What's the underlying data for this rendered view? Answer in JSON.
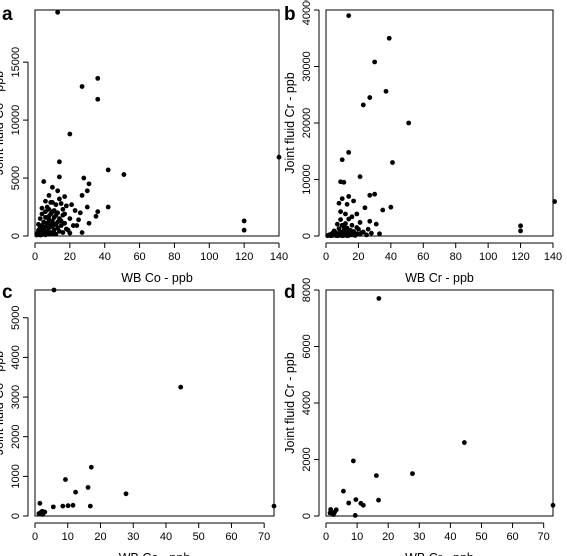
{
  "chart_data": [
    {
      "panel": "a",
      "type": "scatter",
      "xlabel": "WB Co - ppb",
      "ylabel": "Joint fluid Co - ppb",
      "xlim": [
        0,
        140
      ],
      "ylim": [
        0,
        19500
      ],
      "xticks": [
        0,
        20,
        40,
        60,
        80,
        100,
        120,
        140
      ],
      "yticks": [
        0,
        5000,
        10000,
        15000
      ],
      "points": [
        [
          13,
          19300
        ],
        [
          36,
          13600
        ],
        [
          27,
          12900
        ],
        [
          36,
          11800
        ],
        [
          20,
          8800
        ],
        [
          140,
          6800
        ],
        [
          14,
          6400
        ],
        [
          42,
          5700
        ],
        [
          51,
          5300
        ],
        [
          14,
          5100
        ],
        [
          28,
          5000
        ],
        [
          31,
          4500
        ],
        [
          5,
          4700
        ],
        [
          10,
          4200
        ],
        [
          30,
          3900
        ],
        [
          13,
          3900
        ],
        [
          27,
          3500
        ],
        [
          17,
          3400
        ],
        [
          8,
          3500
        ],
        [
          14,
          3200
        ],
        [
          6,
          3000
        ],
        [
          10,
          2900
        ],
        [
          9,
          2900
        ],
        [
          15,
          2800
        ],
        [
          21,
          2700
        ],
        [
          12,
          2700
        ],
        [
          18,
          2600
        ],
        [
          30,
          2500
        ],
        [
          42,
          2500
        ],
        [
          7,
          2500
        ],
        [
          4,
          2400
        ],
        [
          8,
          2300
        ],
        [
          16,
          2300
        ],
        [
          11,
          2200
        ],
        [
          23,
          2200
        ],
        [
          36,
          2100
        ],
        [
          6,
          2100
        ],
        [
          10,
          2100
        ],
        [
          26,
          2000
        ],
        [
          13,
          2000
        ],
        [
          4,
          1900
        ],
        [
          9,
          1900
        ],
        [
          17,
          1900
        ],
        [
          12,
          1800
        ],
        [
          16,
          1800
        ],
        [
          8,
          1700
        ],
        [
          35,
          1700
        ],
        [
          6,
          1600
        ],
        [
          11,
          1600
        ],
        [
          14,
          1500
        ],
        [
          20,
          1500
        ],
        [
          3,
          1500
        ],
        [
          8,
          1400
        ],
        [
          25,
          1400
        ],
        [
          10,
          1300
        ],
        [
          120,
          1300
        ],
        [
          5,
          1200
        ],
        [
          13,
          1200
        ],
        [
          17,
          1100
        ],
        [
          7,
          1100
        ],
        [
          31,
          1100
        ],
        [
          2,
          1000
        ],
        [
          9,
          1000
        ],
        [
          12,
          1000
        ],
        [
          4,
          900
        ],
        [
          15,
          900
        ],
        [
          22,
          900
        ],
        [
          6,
          800
        ],
        [
          10,
          800
        ],
        [
          3,
          700
        ],
        [
          8,
          700
        ],
        [
          13,
          700
        ],
        [
          18,
          600
        ],
        [
          5,
          600
        ],
        [
          11,
          500
        ],
        [
          120,
          500
        ],
        [
          2,
          500
        ],
        [
          7,
          400
        ],
        [
          14,
          400
        ],
        [
          4,
          400
        ],
        [
          9,
          300
        ],
        [
          3,
          300
        ],
        [
          6,
          300
        ],
        [
          16,
          300
        ],
        [
          1,
          200
        ],
        [
          5,
          200
        ],
        [
          10,
          200
        ],
        [
          2,
          150
        ],
        [
          8,
          150
        ],
        [
          12,
          150
        ],
        [
          4,
          100
        ],
        [
          6,
          100
        ],
        [
          1,
          80
        ],
        [
          3,
          80
        ],
        [
          20,
          250
        ],
        [
          27,
          300
        ],
        [
          19,
          500
        ],
        [
          24,
          900
        ],
        [
          15,
          1300
        ],
        [
          11,
          1000
        ]
      ]
    },
    {
      "panel": "b",
      "type": "scatter",
      "xlabel": "WB Cr - ppb",
      "ylabel": "Joint fluid Cr - ppb",
      "xlim": [
        0,
        140
      ],
      "ylim": [
        0,
        40000
      ],
      "xticks": [
        0,
        20,
        40,
        60,
        80,
        100,
        120,
        140
      ],
      "yticks": [
        0,
        10000,
        20000,
        30000,
        40000
      ],
      "points": [
        [
          14,
          39000
        ],
        [
          39,
          35000
        ],
        [
          30,
          30800
        ],
        [
          37,
          25600
        ],
        [
          27,
          24500
        ],
        [
          23,
          23200
        ],
        [
          51,
          20000
        ],
        [
          14,
          14800
        ],
        [
          10,
          13500
        ],
        [
          41,
          13000
        ],
        [
          21,
          10500
        ],
        [
          9,
          9600
        ],
        [
          11,
          9500
        ],
        [
          30,
          7400
        ],
        [
          27,
          7200
        ],
        [
          14,
          7000
        ],
        [
          10,
          6600
        ],
        [
          17,
          6200
        ],
        [
          8,
          5800
        ],
        [
          13,
          5600
        ],
        [
          141,
          6100
        ],
        [
          40,
          5100
        ],
        [
          24,
          5000
        ],
        [
          35,
          4600
        ],
        [
          9,
          4300
        ],
        [
          19,
          3900
        ],
        [
          12,
          3900
        ],
        [
          16,
          3400
        ],
        [
          14,
          3000
        ],
        [
          9,
          2900
        ],
        [
          27,
          2600
        ],
        [
          21,
          2400
        ],
        [
          12,
          2200
        ],
        [
          7,
          2100
        ],
        [
          31,
          2100
        ],
        [
          16,
          1900
        ],
        [
          10,
          1900
        ],
        [
          120,
          1800
        ],
        [
          11,
          1600
        ],
        [
          13,
          1400
        ],
        [
          8,
          1300
        ],
        [
          20,
          1200
        ],
        [
          15,
          1000
        ],
        [
          120,
          900
        ],
        [
          5,
          900
        ],
        [
          11,
          900
        ],
        [
          17,
          800
        ],
        [
          23,
          700
        ],
        [
          9,
          700
        ],
        [
          6,
          600
        ],
        [
          13,
          600
        ],
        [
          28,
          500
        ],
        [
          4,
          500
        ],
        [
          8,
          400
        ],
        [
          11,
          400
        ],
        [
          15,
          400
        ],
        [
          19,
          400
        ],
        [
          3,
          300
        ],
        [
          7,
          300
        ],
        [
          10,
          300
        ],
        [
          13,
          300
        ],
        [
          17,
          300
        ],
        [
          21,
          300
        ],
        [
          2,
          200
        ],
        [
          5,
          200
        ],
        [
          9,
          200
        ],
        [
          12,
          200
        ],
        [
          16,
          200
        ],
        [
          25,
          200
        ],
        [
          4,
          100
        ],
        [
          6,
          100
        ],
        [
          8,
          100
        ],
        [
          11,
          100
        ],
        [
          14,
          100
        ],
        [
          18,
          100
        ],
        [
          1,
          50
        ],
        [
          3,
          50
        ],
        [
          7,
          50
        ],
        [
          10,
          50
        ],
        [
          13,
          50
        ],
        [
          22,
          600
        ],
        [
          26,
          1200
        ],
        [
          33,
          400
        ],
        [
          19,
          1500
        ]
      ]
    },
    {
      "panel": "c",
      "type": "scatter",
      "xlabel": "WB Co - ppb",
      "ylabel": "Joint fluid Co - ppb",
      "xlim": [
        0,
        73
      ],
      "ylim": [
        0,
        5700
      ],
      "xticks": [
        0,
        10,
        20,
        30,
        40,
        50,
        60,
        70
      ],
      "yticks": [
        0,
        1000,
        2000,
        3000,
        4000,
        5000
      ],
      "points": [
        [
          5.8,
          5700
        ],
        [
          44.5,
          3250
        ],
        [
          17.2,
          1230
        ],
        [
          9.3,
          920
        ],
        [
          16.2,
          720
        ],
        [
          12.4,
          600
        ],
        [
          27.8,
          560
        ],
        [
          10.1,
          260
        ],
        [
          11.6,
          270
        ],
        [
          8.5,
          250
        ],
        [
          16.9,
          250
        ],
        [
          5.6,
          230
        ],
        [
          73,
          250
        ],
        [
          1.5,
          320
        ],
        [
          2.2,
          120
        ],
        [
          1.2,
          60
        ],
        [
          2.6,
          80
        ],
        [
          3,
          100
        ],
        [
          1.8,
          90
        ],
        [
          2.3,
          40
        ]
      ]
    },
    {
      "panel": "d",
      "type": "scatter",
      "xlabel": "WB Cr - ppb",
      "ylabel": "Joint fluid Cr - ppb",
      "xlim": [
        0,
        73
      ],
      "ylim": [
        0,
        8000
      ],
      "xticks": [
        0,
        10,
        20,
        30,
        40,
        50,
        60,
        70
      ],
      "yticks": [
        0,
        2000,
        4000,
        6000,
        8000
      ],
      "points": [
        [
          17,
          7700
        ],
        [
          44.5,
          2600
        ],
        [
          8.8,
          1950
        ],
        [
          27.8,
          1500
        ],
        [
          16.2,
          1430
        ],
        [
          5.6,
          880
        ],
        [
          9.6,
          580
        ],
        [
          16.9,
          560
        ],
        [
          7.3,
          460
        ],
        [
          11.2,
          450
        ],
        [
          12,
          380
        ],
        [
          73,
          380
        ],
        [
          1.5,
          230
        ],
        [
          3.3,
          220
        ],
        [
          2.8,
          140
        ],
        [
          2.2,
          100
        ],
        [
          1.3,
          110
        ],
        [
          9.4,
          20
        ],
        [
          2.4,
          50
        ]
      ]
    }
  ],
  "panels": {
    "a": {
      "letter": "a"
    },
    "b": {
      "letter": "b"
    },
    "c": {
      "letter": "c"
    },
    "d": {
      "letter": "d"
    }
  }
}
